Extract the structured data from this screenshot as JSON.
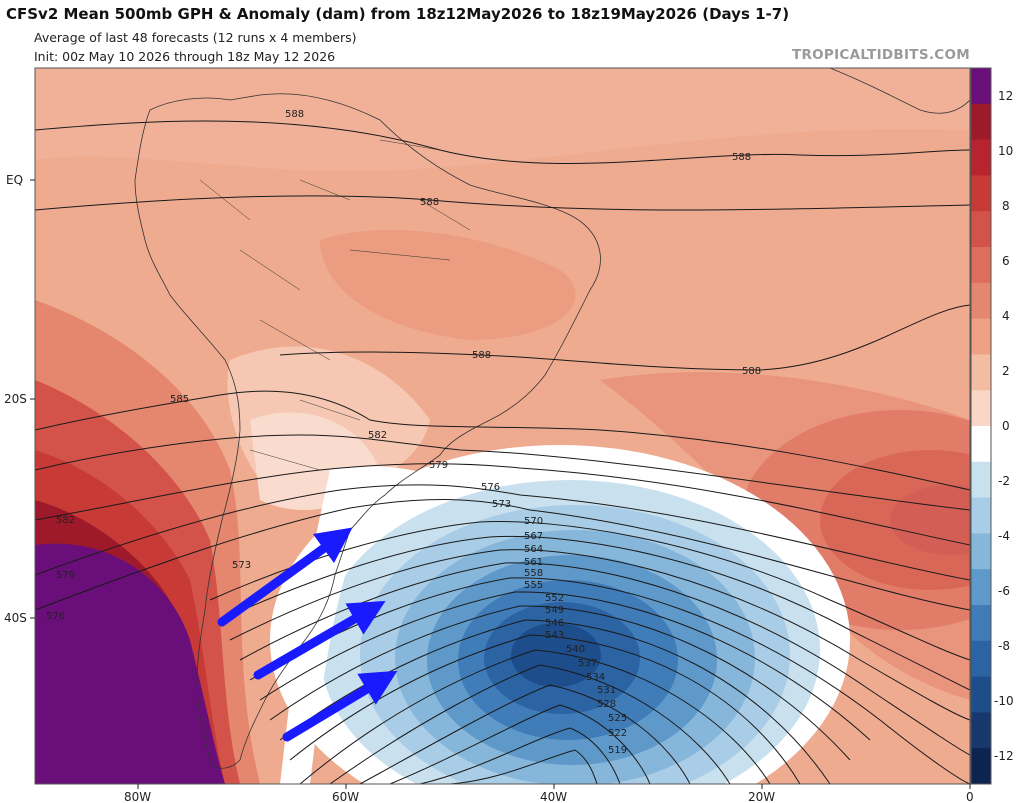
{
  "header": {
    "title": "CFSv2 Mean 500mb GPH & Anomaly (dam) from 18z12May2026 to 18z19May2026 (Days 1-7)",
    "subtitle1": "Average of last 48 forecasts (12 runs x 4 members)",
    "subtitle2": "Init: 00z May 10 2026 through 18z May 12 2026",
    "credit": "TROPICALTIDBITS.COM"
  },
  "axes": {
    "lat_labels": [
      "EQ",
      "20S",
      "40S"
    ],
    "lon_labels": [
      "80W",
      "60W",
      "40W",
      "20W",
      "0"
    ]
  },
  "colorbar": {
    "labels": [
      "12",
      "10",
      "8",
      "6",
      "4",
      "2",
      "0",
      "-2",
      "-4",
      "-6",
      "-8",
      "-10",
      "-12"
    ],
    "colors": [
      "#6a0f7a",
      "#9e1a2a",
      "#b8242e",
      "#c83a36",
      "#d3534a",
      "#dd6e5c",
      "#e5866f",
      "#eea183",
      "#f4bca2",
      "#f9d6c6",
      "#ffffff",
      "#c9e1ef",
      "#a9cde6",
      "#86b6da",
      "#5f99c9",
      "#3f7cb8",
      "#2b63a3",
      "#1e4d8c",
      "#16386d",
      "#0e2450"
    ]
  },
  "contours": {
    "labels": [
      "588",
      "588",
      "588",
      "588",
      "588",
      "585",
      "582",
      "582",
      "579",
      "579",
      "576",
      "576",
      "573",
      "573",
      "570",
      "567",
      "564",
      "561",
      "558",
      "555",
      "552",
      "549",
      "546",
      "543",
      "540",
      "537",
      "534",
      "531",
      "528",
      "525",
      "522",
      "519"
    ]
  },
  "annotations": {
    "arrows": [
      "arrow-1",
      "arrow-2",
      "arrow-3"
    ],
    "arrow_color": "#1a1aff"
  }
}
